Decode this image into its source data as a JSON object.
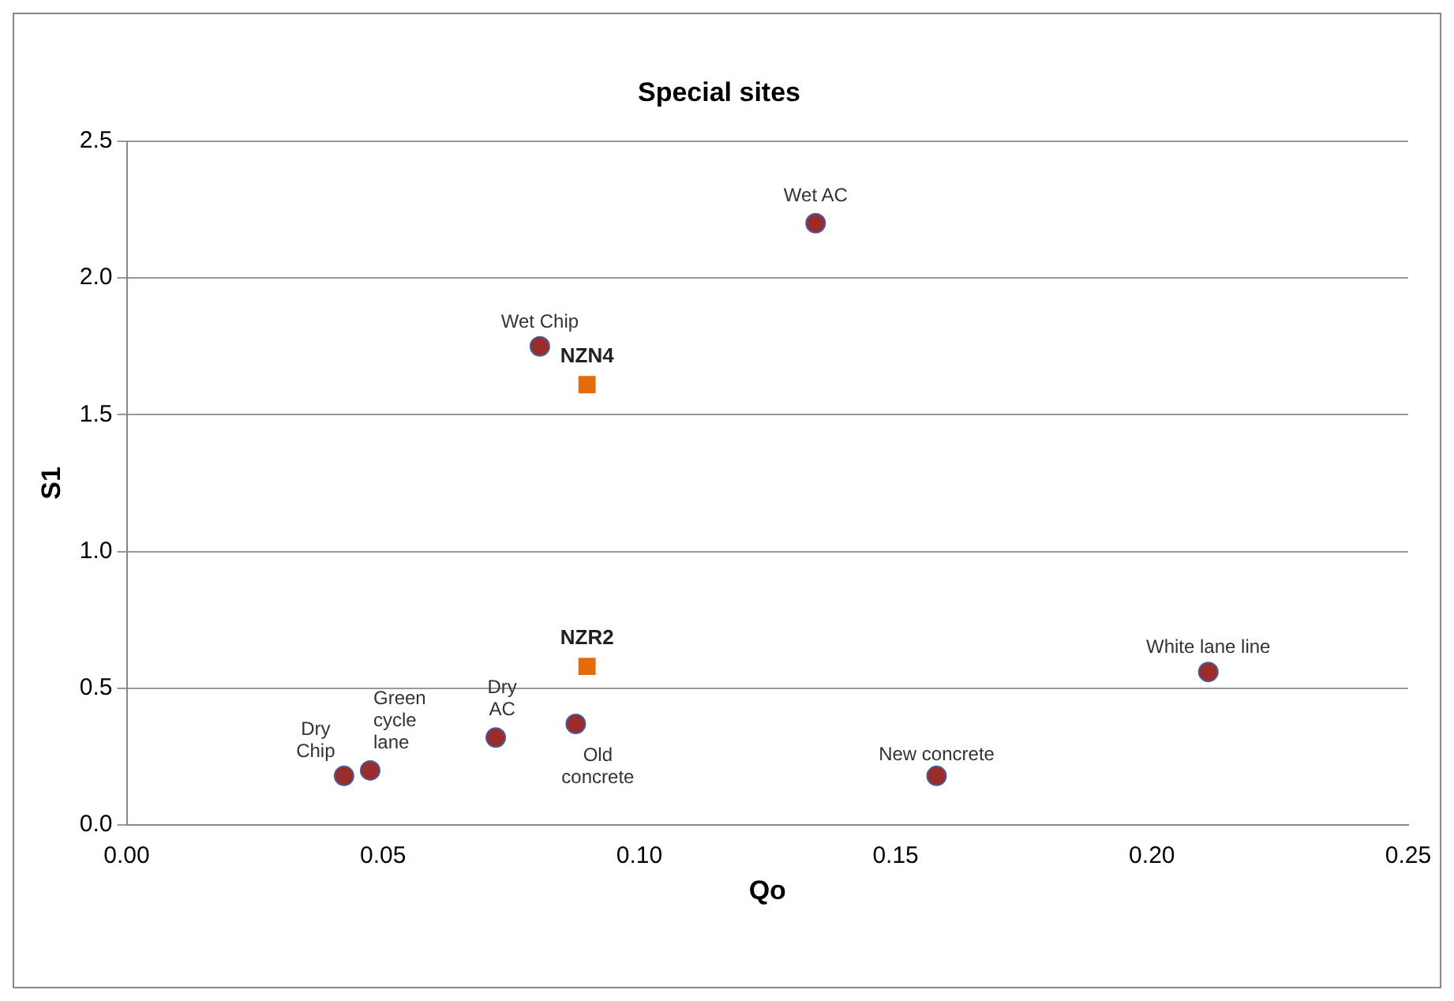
{
  "chart_data": {
    "type": "scatter",
    "title": "Special sites",
    "xlabel": "Qo",
    "ylabel": "S1",
    "series": [
      {
        "color": "#9b2c2c",
        "marker": "circle",
        "x": [
          0.0424,
          0.0475,
          0.072,
          0.0876,
          0.0806,
          0.1344,
          0.158,
          0.211
        ],
        "values": [
          0.18,
          0.2,
          0.32,
          0.37,
          1.75,
          2.2,
          0.18,
          0.56
        ]
      },
      {
        "color": "#e46c0a",
        "marker": "square",
        "x": [
          0.0898,
          0.0898
        ],
        "values": [
          1.61,
          0.58
        ]
      }
    ],
    "xlim": [
      0,
      0.25
    ],
    "xticks": [
      {
        "value": 0,
        "label": "0.00"
      },
      {
        "value": 0.05,
        "label": "0.05"
      },
      {
        "value": 0.1,
        "label": "0.10"
      },
      {
        "value": 0.15,
        "label": "0.15"
      },
      {
        "value": 0.2,
        "label": "0.20"
      },
      {
        "value": 0.25,
        "label": "0.25"
      }
    ],
    "ylim": [
      0,
      2.5
    ],
    "yticks": [
      {
        "value": 0,
        "label": "0.0"
      },
      {
        "value": 0.5,
        "label": "0.5"
      },
      {
        "value": 1,
        "label": "1.0"
      },
      {
        "value": 1.5,
        "label": "1.5"
      },
      {
        "value": 2,
        "label": "2.0"
      },
      {
        "value": 2.5,
        "label": "2.5"
      }
    ],
    "grid": "y",
    "legend": false,
    "annotations": [
      {
        "text": "Dry\nChip",
        "x": 0.0424,
        "y": 0.18
      },
      {
        "text": "Green\ncycle\nlane",
        "x": 0.0475,
        "y": 0.2
      },
      {
        "text": "Dry\nAC",
        "x": 0.072,
        "y": 0.32
      },
      {
        "text": "Old\nconcrete",
        "x": 0.0876,
        "y": 0.37
      },
      {
        "text": "Wet Chip",
        "x": 0.0806,
        "y": 1.75
      },
      {
        "text": "Wet AC",
        "x": 0.1344,
        "y": 2.2
      },
      {
        "text": "New concrete",
        "x": 0.158,
        "y": 0.18
      },
      {
        "text": "White lane line",
        "x": 0.211,
        "y": 0.56
      },
      {
        "text": "NZN4",
        "x": 0.0898,
        "y": 1.61
      },
      {
        "text": "NZR2",
        "x": 0.0898,
        "y": 0.58
      }
    ]
  }
}
